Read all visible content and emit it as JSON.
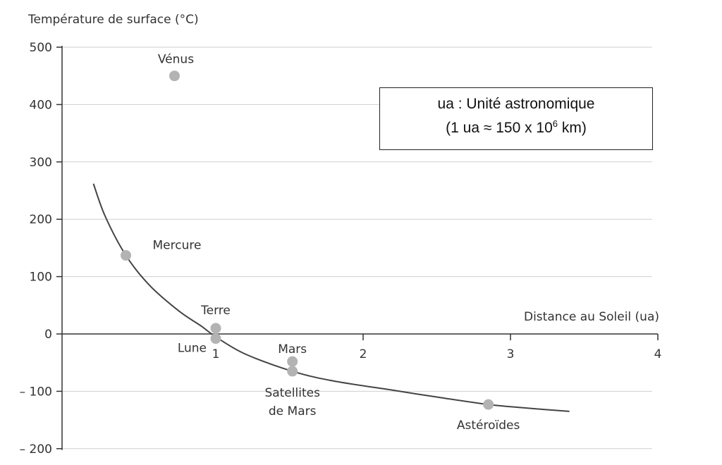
{
  "chart_data": {
    "type": "scatter",
    "ylabel": "Température de surface (°C)",
    "xlabel": "Distance au Soleil (ua)",
    "xlim": [
      0,
      4
    ],
    "ylim": [
      -200,
      500
    ],
    "x_ticks": [
      1,
      2,
      3,
      4
    ],
    "y_ticks": [
      500,
      400,
      300,
      200,
      100,
      0,
      -100,
      -200
    ],
    "y_tick_labels": [
      "500",
      "400",
      "300",
      "200",
      "100",
      "0",
      "– 100",
      "– 200"
    ],
    "points": [
      {
        "label": "Vénus",
        "x": 0.72,
        "y": 450
      },
      {
        "label": "Mercure",
        "x": 0.39,
        "y": 137
      },
      {
        "label": "Terre",
        "x": 1.0,
        "y": 10
      },
      {
        "label": "Lune",
        "x": 1.0,
        "y": -8
      },
      {
        "label": "Mars",
        "x": 1.52,
        "y": -48
      },
      {
        "label": "Satellites de Mars",
        "x": 1.52,
        "y": -65
      },
      {
        "label": "Astéroïdes",
        "x": 2.85,
        "y": -123
      }
    ],
    "trend_curve": {
      "x": [
        0.17,
        0.25,
        0.39,
        0.55,
        0.75,
        0.9,
        1.0,
        1.2,
        1.52,
        1.8,
        2.2,
        2.5,
        2.85,
        3.1,
        3.4
      ],
      "y": [
        262,
        205,
        137,
        85,
        40,
        14,
        -5,
        -35,
        -65,
        -82,
        -98,
        -110,
        -123,
        -129,
        -135
      ]
    },
    "grid": true,
    "legend_box": {
      "line1": "ua : Unité astronomique",
      "line2_prefix": "(1 ua ≈ 150 x 10",
      "line2_exponent": "6",
      "line2_suffix": " km)"
    },
    "colors": {
      "axis": "#333333",
      "grid": "#cfcfcf",
      "point": "#b3b3b3",
      "curve": "#444444"
    }
  }
}
